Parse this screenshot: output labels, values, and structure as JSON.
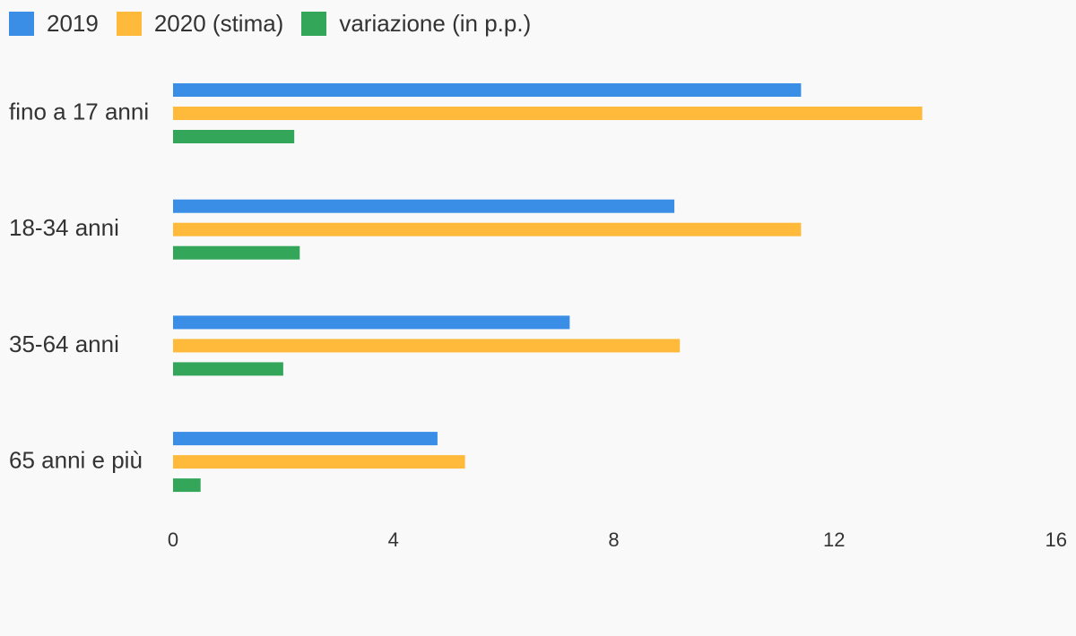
{
  "chart_data": {
    "type": "bar",
    "orientation": "horizontal",
    "categories": [
      "fino a 17 anni",
      "18-34 anni",
      "35-64 anni",
      "65 anni e più"
    ],
    "series": [
      {
        "name": "2019",
        "color": "#3a8ee6",
        "values": [
          11.4,
          9.1,
          7.2,
          4.8
        ]
      },
      {
        "name": "2020 (stima)",
        "color": "#ffba3b",
        "values": [
          13.6,
          11.4,
          9.2,
          5.3
        ]
      },
      {
        "name": "variazione (in p.p.)",
        "color": "#34a65a",
        "values": [
          2.2,
          2.3,
          2.0,
          0.5
        ]
      }
    ],
    "xlim": [
      0,
      16
    ],
    "xticks": [
      "0",
      "4",
      "8",
      "12",
      "16"
    ],
    "legend_position": "top-left",
    "grid": false
  }
}
